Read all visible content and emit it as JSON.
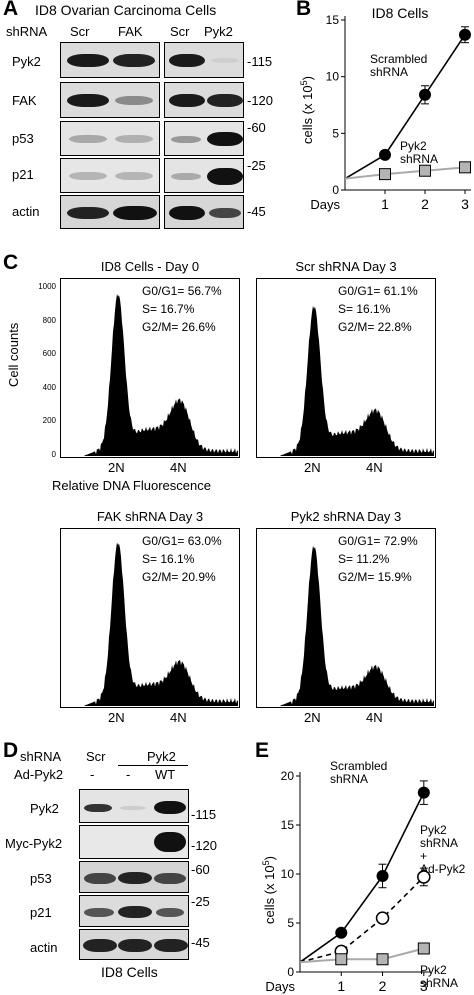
{
  "panelA": {
    "letter": "A",
    "title": "ID8 Ovarian Carcinoma Cells",
    "shrna_label": "shRNA",
    "cols": [
      "Scr",
      "FAK",
      "Scr",
      "Pyk2"
    ],
    "rows": [
      "Pyk2",
      "FAK",
      "p53",
      "p21",
      "actin"
    ],
    "mw": [
      "-115",
      "-120",
      "-60",
      "-25",
      "-45"
    ]
  },
  "panelB": {
    "letter": "B",
    "chart_data": {
      "type": "line",
      "title": "ID8  Cells",
      "xlabel": "Days",
      "ylabel": "cells (x 10^5)",
      "ylabel_main": "cells (x 10",
      "ylabel_sup": "5",
      "ylabel_end": ")",
      "x": [
        0,
        1,
        2,
        3
      ],
      "xticks": [
        "1",
        "2",
        "3"
      ],
      "ylim": [
        0,
        15
      ],
      "yticks": [
        0,
        5,
        10,
        15
      ],
      "series": [
        {
          "name": "Scrambled shRNA",
          "label_lines": [
            "Scrambled",
            "shRNA"
          ],
          "values": [
            1.0,
            3.1,
            8.4,
            13.7
          ],
          "err": [
            0,
            0.3,
            0.8,
            0.7
          ],
          "marker": "circle-filled",
          "color": "#000000"
        },
        {
          "name": "Pyk2 shRNA",
          "label_lines": [
            "Pyk2",
            "shRNA"
          ],
          "values": [
            1.0,
            1.4,
            1.7,
            2.0
          ],
          "err": [
            0,
            0.1,
            0.1,
            0.1
          ],
          "marker": "square-gray",
          "color": "#b0b0b0"
        }
      ]
    }
  },
  "panelC": {
    "letter": "C",
    "yaxis_label": "Cell counts",
    "yticks": [
      "0",
      "200",
      "400",
      "600",
      "800",
      "1000"
    ],
    "xaxis_label": "Relative DNA Fluorescence",
    "xticks": [
      "2N",
      "4N"
    ],
    "histograms": [
      {
        "title": "ID8 Cells - Day 0",
        "g0g1": "G0/G1= 56.7%",
        "s": "S= 16.7%",
        "g2m": "G2/M= 26.6%"
      },
      {
        "title": "Scr shRNA Day 3",
        "g0g1": "G0/G1= 61.1%",
        "s": "S= 16.1%",
        "g2m": "G2/M= 22.8%"
      },
      {
        "title": "FAK shRNA Day 3",
        "g0g1": "G0/G1= 63.0%",
        "s": "S= 16.1%",
        "g2m": "G2/M= 20.9%"
      },
      {
        "title": "Pyk2 shRNA Day 3",
        "g0g1": "G0/G1= 72.9%",
        "s": "S= 11.2%",
        "g2m": "G2/M= 15.9%"
      }
    ]
  },
  "panelD": {
    "letter": "D",
    "shrna_label": "shRNA",
    "scr_label": "Scr",
    "pyk2_label": "Pyk2",
    "ad_label": "Ad-Pyk2",
    "ad_values": [
      "-",
      "-",
      "WT"
    ],
    "rows": [
      "Pyk2",
      "Myc-Pyk2",
      "p53",
      "p21",
      "actin"
    ],
    "mw": [
      "-115",
      "-120",
      "-60",
      "-25",
      "-45"
    ],
    "footer": "ID8  Cells"
  },
  "panelE": {
    "letter": "E",
    "chart_data": {
      "type": "line",
      "xlabel": "Days",
      "ylabel": "cells (x 10^5)",
      "ylabel_main": "cells (x 10",
      "ylabel_sup": "5",
      "ylabel_end": ")",
      "x": [
        0,
        1,
        2,
        3
      ],
      "xticks": [
        "1",
        "2",
        "3"
      ],
      "ylim": [
        0,
        20
      ],
      "yticks": [
        0,
        5,
        10,
        15,
        20
      ],
      "series": [
        {
          "name": "Scrambled shRNA",
          "label_lines": [
            "Scrambled",
            "shRNA"
          ],
          "values": [
            1.0,
            4.0,
            9.8,
            18.3
          ],
          "err": [
            0,
            0.3,
            1.2,
            1.2
          ],
          "marker": "circle-filled",
          "dash": false
        },
        {
          "name": "Pyk2 shRNA + Ad-Pyk2",
          "label_lines": [
            "Pyk2",
            "shRNA",
            "+",
            "Ad-Pyk2"
          ],
          "values": [
            1.0,
            2.1,
            5.5,
            9.7
          ],
          "err": [
            0,
            0.3,
            0.3,
            0.9
          ],
          "marker": "circle-open",
          "dash": true
        },
        {
          "name": "Pyk2 shRNA",
          "label_lines": [
            "Pyk2",
            "shRNA"
          ],
          "values": [
            1.0,
            1.3,
            1.3,
            2.4
          ],
          "err": [
            0,
            0.1,
            0.1,
            0.3
          ],
          "marker": "square-gray",
          "dash": false
        }
      ]
    }
  }
}
